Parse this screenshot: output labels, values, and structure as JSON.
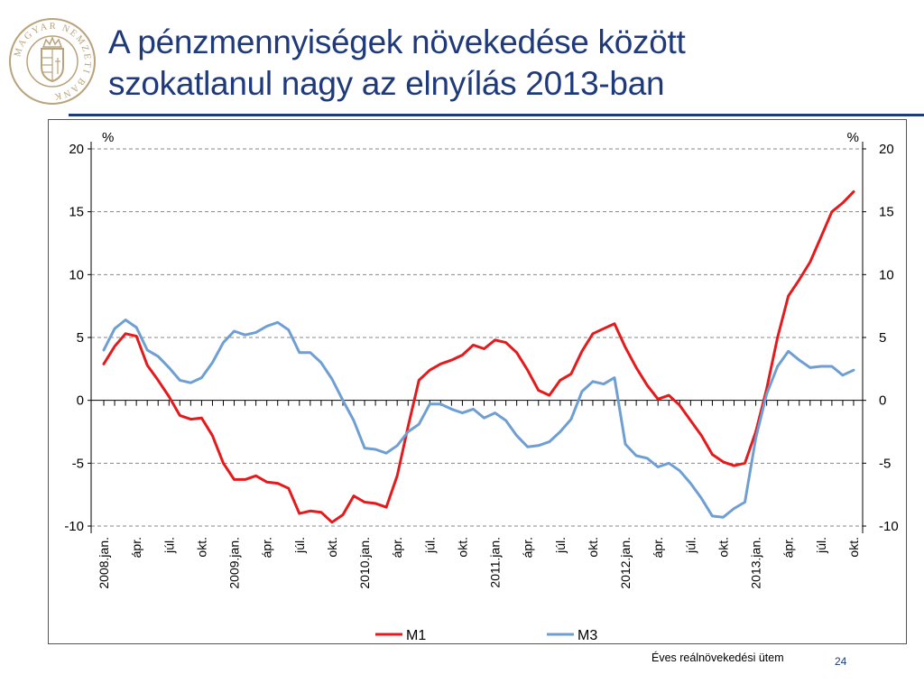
{
  "slide": {
    "title_lines": [
      "A pénzmennyiségek növekedése között",
      "szokatlanul nagy az elnyílás 2013-ban"
    ],
    "footnote": "Éves reálnövekedési ütem",
    "page_number": "24",
    "title_color": "#1f3a7a",
    "logo_text": "MAGYAR NEMZETI BANK"
  },
  "chart_data": {
    "type": "line",
    "title": "",
    "ylabel_left": "%",
    "ylabel_right": "%",
    "ylim": [
      -10,
      20
    ],
    "yticks": [
      -10,
      -5,
      0,
      5,
      10,
      15,
      20
    ],
    "y_tick_labels": [
      "-10",
      "-5",
      "0",
      "5",
      "10",
      "15",
      "20"
    ],
    "grid": "horizontal dashed",
    "legend_position": "bottom",
    "x_tick_labels": [
      "2008.jan.",
      "ápr.",
      "júl.",
      "okt.",
      "2009.jan.",
      "ápr.",
      "júl.",
      "okt.",
      "2010.jan.",
      "ápr.",
      "júl.",
      "okt.",
      "2011.jan.",
      "ápr.",
      "júl.",
      "okt.",
      "2012.jan.",
      "ápr.",
      "júl.",
      "okt.",
      "2013.jan.",
      "ápr.",
      "júl.",
      "okt."
    ],
    "x_tick_month_index": [
      0,
      3,
      6,
      9,
      12,
      15,
      18,
      21,
      24,
      27,
      30,
      33,
      36,
      39,
      42,
      45,
      48,
      51,
      54,
      57,
      60,
      63,
      66,
      69
    ],
    "x_start": "2008-01",
    "x_end": "2013-10",
    "series": [
      {
        "name": "M1",
        "color": "#e41a1c",
        "values": [
          2.9,
          4.3,
          5.3,
          5.1,
          2.8,
          1.6,
          0.3,
          -1.2,
          -1.5,
          -1.4,
          -2.8,
          -5.0,
          -6.3,
          -6.3,
          -6.0,
          -6.5,
          -6.6,
          -7.0,
          -9.0,
          -8.8,
          -8.9,
          -9.7,
          -9.1,
          -7.6,
          -8.1,
          -8.2,
          -8.5,
          -6.0,
          -2.1,
          1.6,
          2.4,
          2.9,
          3.2,
          3.6,
          4.4,
          4.1,
          4.8,
          4.6,
          3.8,
          2.4,
          0.8,
          0.4,
          1.6,
          2.1,
          3.9,
          5.3,
          5.7,
          6.1,
          4.2,
          2.6,
          1.2,
          0.1,
          0.4,
          -0.4,
          -1.6,
          -2.8,
          -4.3,
          -4.9,
          -5.2,
          -5.0,
          -2.5,
          0.9,
          5.0,
          8.3,
          9.6,
          11.0,
          13.0,
          15.0,
          15.7,
          16.6
        ]
      },
      {
        "name": "M3",
        "color": "#6f9fd2",
        "values": [
          4.0,
          5.7,
          6.4,
          5.8,
          4.0,
          3.5,
          2.6,
          1.6,
          1.4,
          1.8,
          3.0,
          4.6,
          5.5,
          5.2,
          5.4,
          5.9,
          6.2,
          5.6,
          3.8,
          3.8,
          3.0,
          1.7,
          0.0,
          -1.6,
          -3.8,
          -3.9,
          -4.2,
          -3.6,
          -2.5,
          -1.9,
          -0.3,
          -0.3,
          -0.7,
          -1.0,
          -0.7,
          -1.4,
          -1.0,
          -1.6,
          -2.8,
          -3.7,
          -3.6,
          -3.3,
          -2.5,
          -1.5,
          0.7,
          1.5,
          1.3,
          1.8,
          -3.5,
          -4.4,
          -4.6,
          -5.3,
          -5.0,
          -5.6,
          -6.6,
          -7.8,
          -9.2,
          -9.3,
          -8.6,
          -8.1,
          -3.0,
          0.5,
          2.7,
          3.9,
          3.2,
          2.6,
          2.7,
          2.7,
          2.0,
          2.4
        ]
      }
    ]
  }
}
